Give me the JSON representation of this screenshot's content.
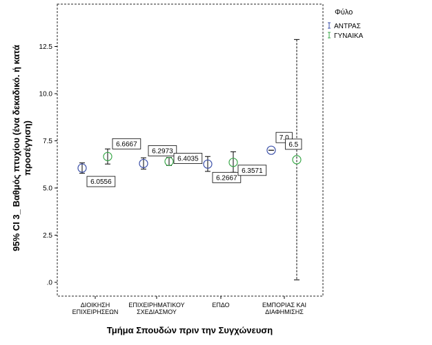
{
  "chart_data": {
    "type": "scatter",
    "subtype": "errorbar",
    "xlabel": "Τμήμα Σπουδών πριν την Συγχώνευση",
    "ylabel_lines": [
      "95% CI 3_ Βαθμός πτυχίου  (ένα δεκαδικό. ή κατά",
      "προσέγγιση)"
    ],
    "ylim": [
      0,
      15
    ],
    "yticks": [
      0,
      2.5,
      5,
      7.5,
      10,
      12.5
    ],
    "ytick_labels": [
      ".0",
      "2.5",
      "5.0",
      "7.5",
      "10.0",
      "12.5"
    ],
    "grid": false,
    "legend_position": "top-right",
    "categories": [
      [
        "ΔΙΟΙΚΗΣΗ",
        "ΕΠΙΧΕΙΡΗΣΕΩΝ"
      ],
      [
        "ΕΠΙΧΕΙΡΗΜΑΤΙΚΟΥ",
        "ΣΧΕΔΙΑΣΜΟΥ"
      ],
      [
        "ΕΠΔΟ"
      ],
      [
        "ΕΜΠΟΡΙΑΣ ΚΑΙ",
        "ΔΙΑΦΗΜΙΣΗΣ"
      ]
    ],
    "legend_title": "Φύλο",
    "series": [
      {
        "name": "ΑΝΤΡΑΣ",
        "color": "#3a4fa8",
        "mean": [
          6.0556,
          6.2973,
          6.2667,
          7.0
        ],
        "lower": [
          5.78,
          6.0,
          5.88,
          7.0
        ],
        "upper": [
          6.33,
          6.6,
          6.67,
          7.0
        ],
        "labels": [
          "6.0556",
          "6.2973",
          "6.2667",
          "7.0"
        ]
      },
      {
        "name": "ΓΥΝΑΙΚΑ",
        "color": "#3aa84a",
        "mean": [
          6.6667,
          6.4035,
          6.3571,
          6.5
        ],
        "lower": [
          6.27,
          6.19,
          5.83,
          0.13
        ],
        "upper": [
          7.07,
          6.62,
          6.92,
          12.87
        ],
        "labels": [
          "6.6667",
          "6.4035",
          "6.3571",
          "6.5"
        ]
      }
    ]
  }
}
